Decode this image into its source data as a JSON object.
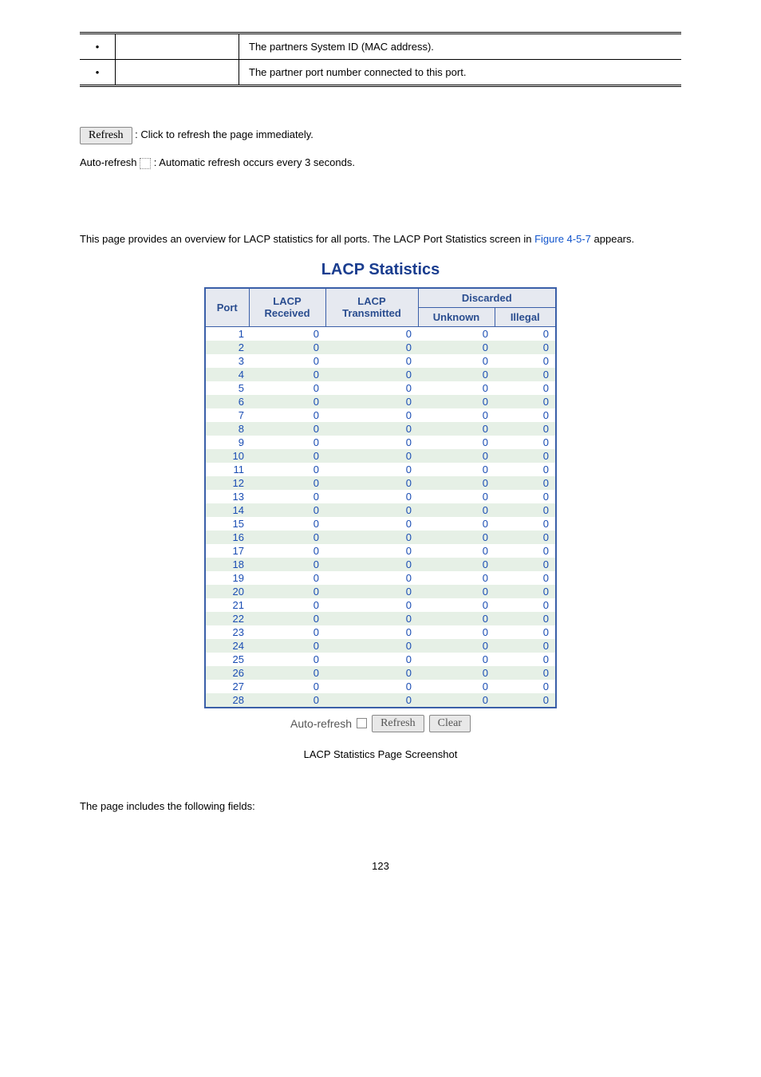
{
  "top_table": {
    "rows": [
      {
        "desc": "The partners System ID (MAC address)."
      },
      {
        "desc": "The partner port number connected to this port."
      }
    ]
  },
  "refresh_section": {
    "refresh_btn": "Refresh",
    "refresh_text": ": Click to refresh the page immediately.",
    "auto_prefix": "Auto-refresh ",
    "auto_text": ": Automatic refresh occurs every 3 seconds."
  },
  "overview": {
    "text_before": "This page provides an overview for LACP statistics for all ports. The LACP Port Statistics screen in ",
    "fig_ref": "Figure 4-5-7",
    "text_after": " appears."
  },
  "stats": {
    "title": "LACP Statistics",
    "headers": {
      "port": "Port",
      "recv": "LACP Received",
      "trans": "LACP Transmitted",
      "discarded": "Discarded",
      "unknown": "Unknown",
      "illegal": "Illegal"
    },
    "header_lines": {
      "lacp": "LACP",
      "received": "Received",
      "transmitted": "Transmitted"
    },
    "rows": [
      {
        "port": 1,
        "recv": 0,
        "trans": 0,
        "unk": 0,
        "ill": 0
      },
      {
        "port": 2,
        "recv": 0,
        "trans": 0,
        "unk": 0,
        "ill": 0
      },
      {
        "port": 3,
        "recv": 0,
        "trans": 0,
        "unk": 0,
        "ill": 0
      },
      {
        "port": 4,
        "recv": 0,
        "trans": 0,
        "unk": 0,
        "ill": 0
      },
      {
        "port": 5,
        "recv": 0,
        "trans": 0,
        "unk": 0,
        "ill": 0
      },
      {
        "port": 6,
        "recv": 0,
        "trans": 0,
        "unk": 0,
        "ill": 0
      },
      {
        "port": 7,
        "recv": 0,
        "trans": 0,
        "unk": 0,
        "ill": 0
      },
      {
        "port": 8,
        "recv": 0,
        "trans": 0,
        "unk": 0,
        "ill": 0
      },
      {
        "port": 9,
        "recv": 0,
        "trans": 0,
        "unk": 0,
        "ill": 0
      },
      {
        "port": 10,
        "recv": 0,
        "trans": 0,
        "unk": 0,
        "ill": 0
      },
      {
        "port": 11,
        "recv": 0,
        "trans": 0,
        "unk": 0,
        "ill": 0
      },
      {
        "port": 12,
        "recv": 0,
        "trans": 0,
        "unk": 0,
        "ill": 0
      },
      {
        "port": 13,
        "recv": 0,
        "trans": 0,
        "unk": 0,
        "ill": 0
      },
      {
        "port": 14,
        "recv": 0,
        "trans": 0,
        "unk": 0,
        "ill": 0
      },
      {
        "port": 15,
        "recv": 0,
        "trans": 0,
        "unk": 0,
        "ill": 0
      },
      {
        "port": 16,
        "recv": 0,
        "trans": 0,
        "unk": 0,
        "ill": 0
      },
      {
        "port": 17,
        "recv": 0,
        "trans": 0,
        "unk": 0,
        "ill": 0
      },
      {
        "port": 18,
        "recv": 0,
        "trans": 0,
        "unk": 0,
        "ill": 0
      },
      {
        "port": 19,
        "recv": 0,
        "trans": 0,
        "unk": 0,
        "ill": 0
      },
      {
        "port": 20,
        "recv": 0,
        "trans": 0,
        "unk": 0,
        "ill": 0
      },
      {
        "port": 21,
        "recv": 0,
        "trans": 0,
        "unk": 0,
        "ill": 0
      },
      {
        "port": 22,
        "recv": 0,
        "trans": 0,
        "unk": 0,
        "ill": 0
      },
      {
        "port": 23,
        "recv": 0,
        "trans": 0,
        "unk": 0,
        "ill": 0
      },
      {
        "port": 24,
        "recv": 0,
        "trans": 0,
        "unk": 0,
        "ill": 0
      },
      {
        "port": 25,
        "recv": 0,
        "trans": 0,
        "unk": 0,
        "ill": 0
      },
      {
        "port": 26,
        "recv": 0,
        "trans": 0,
        "unk": 0,
        "ill": 0
      },
      {
        "port": 27,
        "recv": 0,
        "trans": 0,
        "unk": 0,
        "ill": 0
      },
      {
        "port": 28,
        "recv": 0,
        "trans": 0,
        "unk": 0,
        "ill": 0
      }
    ],
    "footer": {
      "auto_refresh": "Auto-refresh",
      "refresh_btn": "Refresh",
      "clear_btn": "Clear"
    }
  },
  "caption": "LACP Statistics Page Screenshot",
  "bottom_text": "The page includes the following fields:",
  "page_number": "123"
}
